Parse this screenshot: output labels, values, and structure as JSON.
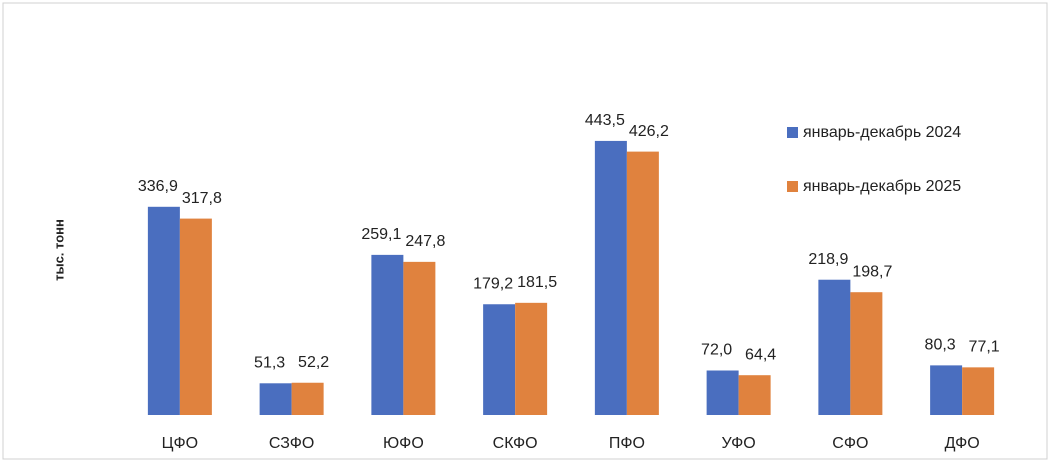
{
  "chart_data": {
    "type": "bar",
    "y_label": "тыс. тонн",
    "categories": [
      "ЦФО",
      "СЗФО",
      "ЮФО",
      "СКФО",
      "ПФО",
      "УФО",
      "СФО",
      "ДФО"
    ],
    "series": [
      {
        "name": "январь-декабрь 2024",
        "color": "#4a6ebf",
        "values": [
          336.9,
          51.3,
          259.1,
          179.2,
          443.5,
          72.0,
          218.9,
          80.3
        ],
        "value_labels": [
          "336,9",
          "51,3",
          "259,1",
          "179,2",
          "443,5",
          "72,0",
          "218,9",
          "80,3"
        ]
      },
      {
        "name": "январь-декабрь 2025",
        "color": "#e0823e",
        "values": [
          317.8,
          52.2,
          247.8,
          181.5,
          426.2,
          64.4,
          198.7,
          77.1
        ],
        "value_labels": [
          "317,8",
          "52,2",
          "247,8",
          "181,5",
          "426,2",
          "64,4",
          "198,7",
          "77,1"
        ]
      }
    ],
    "ylim": [
      0,
      500
    ],
    "legend": "right"
  }
}
